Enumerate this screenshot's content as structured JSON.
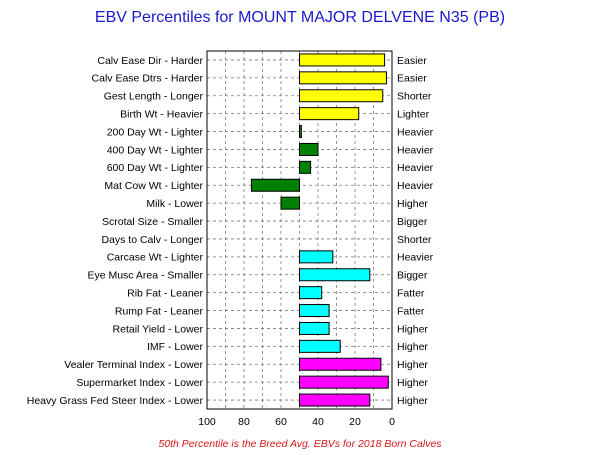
{
  "chart_data": {
    "type": "bar",
    "orientation": "horizontal",
    "title": "EBV Percentiles for MOUNT MAJOR DELVENE N35 (PB)",
    "footnote": "50th Percentile is the Breed Avg. EBVs for 2018 Born Calves",
    "xlim": [
      100,
      0
    ],
    "x_reversed": true,
    "baseline": 50,
    "xticks": [
      100,
      80,
      60,
      40,
      20,
      0
    ],
    "grid": true,
    "colors": {
      "calving": "#ffff00",
      "growth": "#008000",
      "fertility": "#008000",
      "carcase": "#00ffff",
      "index": "#ff00ff"
    },
    "categories": [
      {
        "left": "Calv Ease Dir - Harder",
        "right": "Easier",
        "value": 4,
        "group": "calving"
      },
      {
        "left": "Calv Ease Dtrs - Harder",
        "right": "Easier",
        "value": 3,
        "group": "calving"
      },
      {
        "left": "Gest Length - Longer",
        "right": "Shorter",
        "value": 5,
        "group": "calving"
      },
      {
        "left": "Birth Wt - Heavier",
        "right": "Lighter",
        "value": 18,
        "group": "calving"
      },
      {
        "left": "200 Day Wt - Lighter",
        "right": "Heavier",
        "value": 49,
        "group": "growth"
      },
      {
        "left": "400 Day Wt - Lighter",
        "right": "Heavier",
        "value": 40,
        "group": "growth"
      },
      {
        "left": "600 Day Wt - Lighter",
        "right": "Heavier",
        "value": 44,
        "group": "growth"
      },
      {
        "left": "Mat Cow Wt - Lighter",
        "right": "Heavier",
        "value": 76,
        "group": "growth"
      },
      {
        "left": "Milk - Lower",
        "right": "Higher",
        "value": 60,
        "group": "growth"
      },
      {
        "left": "Scrotal Size - Smaller",
        "right": "Bigger",
        "value": null,
        "group": "fertility"
      },
      {
        "left": "Days to Calv - Longer",
        "right": "Shorter",
        "value": null,
        "group": "fertility"
      },
      {
        "left": "Carcase Wt - Lighter",
        "right": "Heavier",
        "value": 32,
        "group": "carcase"
      },
      {
        "left": "Eye Musc Area - Smaller",
        "right": "Bigger",
        "value": 12,
        "group": "carcase"
      },
      {
        "left": "Rib Fat - Leaner",
        "right": "Fatter",
        "value": 38,
        "group": "carcase"
      },
      {
        "left": "Rump Fat - Leaner",
        "right": "Fatter",
        "value": 34,
        "group": "carcase"
      },
      {
        "left": "Retail Yield - Lower",
        "right": "Higher",
        "value": 34,
        "group": "carcase"
      },
      {
        "left": "IMF - Lower",
        "right": "Higher",
        "value": 28,
        "group": "carcase"
      },
      {
        "left": "Vealer Terminal Index - Lower",
        "right": "Higher",
        "value": 6,
        "group": "index"
      },
      {
        "left": "Supermarket Index - Lower",
        "right": "Higher",
        "value": 2,
        "group": "index"
      },
      {
        "left": "Heavy Grass Fed Steer Index - Lower",
        "right": "Higher",
        "value": 12,
        "group": "index"
      }
    ]
  }
}
